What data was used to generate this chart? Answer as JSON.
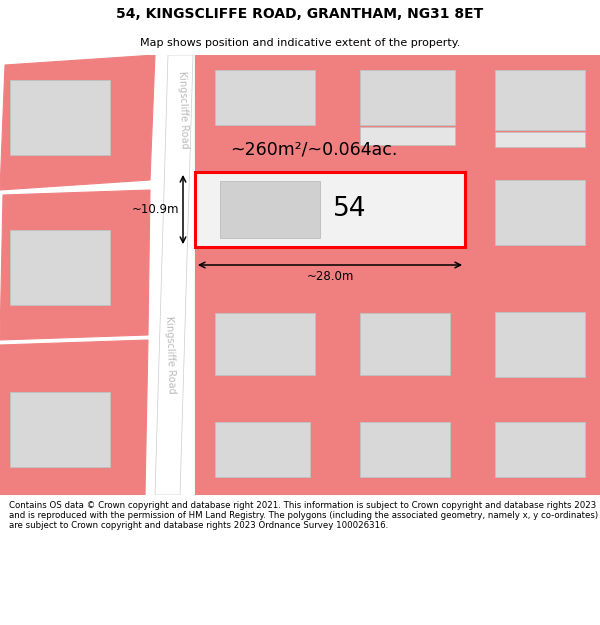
{
  "title": "54, KINGSCLIFFE ROAD, GRANTHAM, NG31 8ET",
  "subtitle": "Map shows position and indicative extent of the property.",
  "footer": "Contains OS data © Crown copyright and database right 2021. This information is subject to Crown copyright and database rights 2023 and is reproduced with the permission of HM Land Registry. The polygons (including the associated geometry, namely x, y co-ordinates) are subject to Crown copyright and database rights 2023 Ordnance Survey 100026316.",
  "area_label": "~260m²/~0.064ac.",
  "number_label": "54",
  "dim_h": "~28.0m",
  "dim_v": "~10.9m",
  "road_label": "Kingscliffe Road",
  "bg_color": "#ffffff",
  "building_fill": "#d8d8d8",
  "building_edge": "#c0c0c0",
  "plot_stroke": "#ff0000",
  "boundary_stroke": "#f08080",
  "road_strip_color": "#ffffff",
  "road_edge_color": "#cccccc"
}
